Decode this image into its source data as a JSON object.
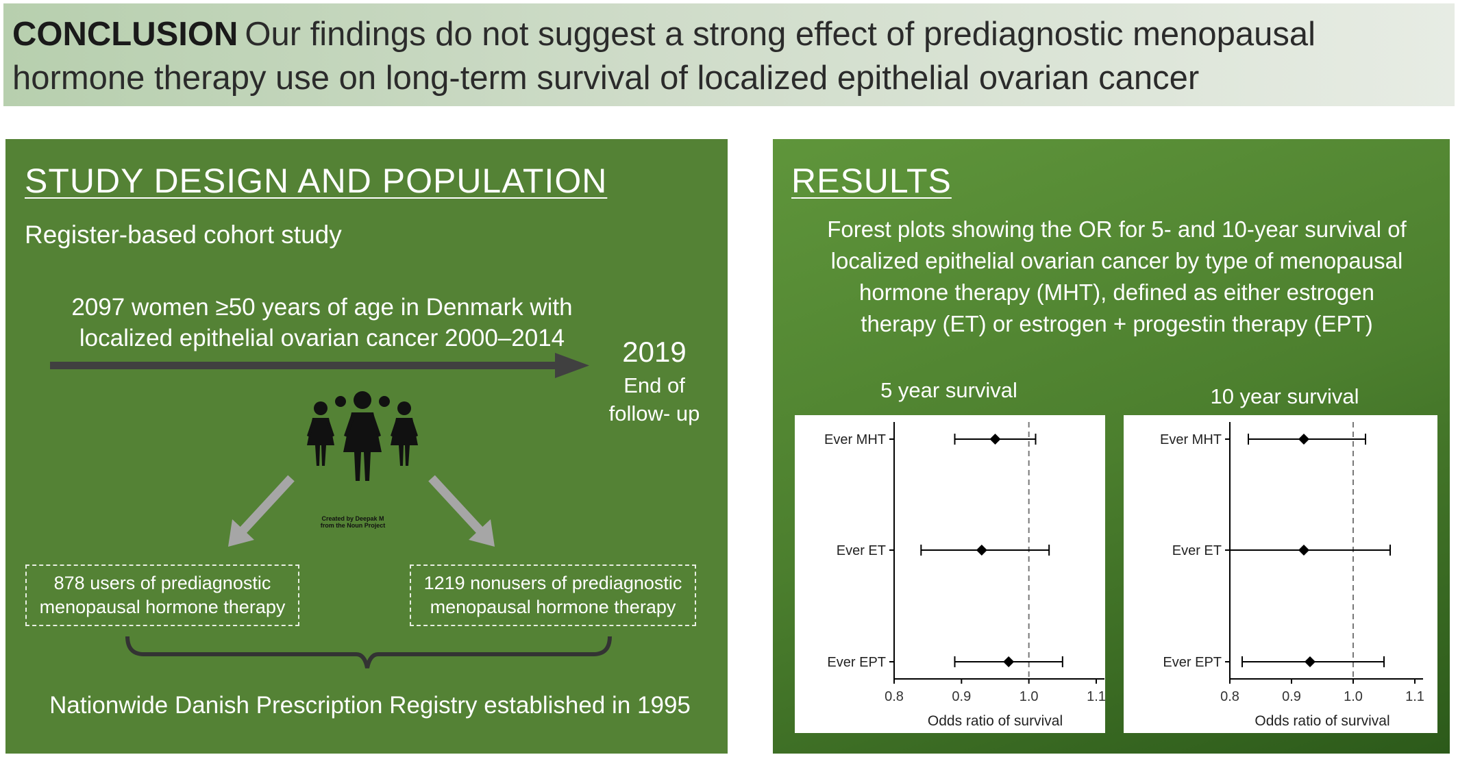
{
  "conclusion": {
    "label": "CONCLUSION",
    "text": "Our findings do not suggest a strong effect of prediagnostic menopausal hormone therapy use on long-term survival of localized epithelial ovarian cancer"
  },
  "study_design": {
    "heading": "STUDY DESIGN AND POPULATION",
    "subheading": "Register-based cohort study",
    "population_line1": "2097 women ≥50 years of age in Denmark with",
    "population_line2": "localized epithelial ovarian cancer 2000–2014",
    "end_year": "2019",
    "end_label_line1": "End of",
    "end_label_line2": "follow- up",
    "icon_credit_line1": "Created by Deepak M",
    "icon_credit_line2": "from the Noun Project",
    "users_line1": "878 users  of prediagnostic",
    "users_line2": "menopausal hormone therapy",
    "nonusers_line1": "1219 nonusers  of prediagnostic",
    "nonusers_line2": "menopausal hormone therapy",
    "registry_text": "Nationwide Danish Prescription Registry established in 1995"
  },
  "results": {
    "heading": "RESULTS",
    "description_lines": [
      "Forest plots showing the OR for 5- and 10-year survival of",
      "localized epithelial ovarian cancer by type of menopausal",
      "hormone therapy (MHT), defined as either estrogen",
      "therapy (ET) or estrogen + progestin therapy (EPT)"
    ]
  },
  "chart_data": [
    {
      "type": "forest",
      "title": "5 year survival",
      "xlabel": "Odds ratio of survival",
      "xlim": [
        0.8,
        1.1
      ],
      "xticks": [
        "0.8",
        "0.9",
        "1.0",
        "1.1"
      ],
      "reference_line": 1.0,
      "categories": [
        "Ever MHT",
        "Ever ET",
        "Ever EPT"
      ],
      "estimate": [
        0.95,
        0.93,
        0.97
      ],
      "ci_low": [
        0.89,
        0.84,
        0.89
      ],
      "ci_high": [
        1.01,
        1.03,
        1.05
      ]
    },
    {
      "type": "forest",
      "title": "10 year survival",
      "xlabel": "Odds ratio of survival",
      "xlim": [
        0.8,
        1.1
      ],
      "xticks": [
        "0.8",
        "0.9",
        "1.0",
        "1.1"
      ],
      "reference_line": 1.0,
      "categories": [
        "Ever MHT",
        "Ever ET",
        "Ever EPT"
      ],
      "estimate": [
        0.92,
        0.92,
        0.93
      ],
      "ci_low": [
        0.83,
        0.8,
        0.82
      ],
      "ci_high": [
        1.02,
        1.06,
        1.05
      ]
    }
  ],
  "colors": {
    "left_panel": "#548235",
    "right_panel": "#4c7f2e",
    "arrow": "#404040",
    "gray_arrow": "#a6a6a6"
  }
}
